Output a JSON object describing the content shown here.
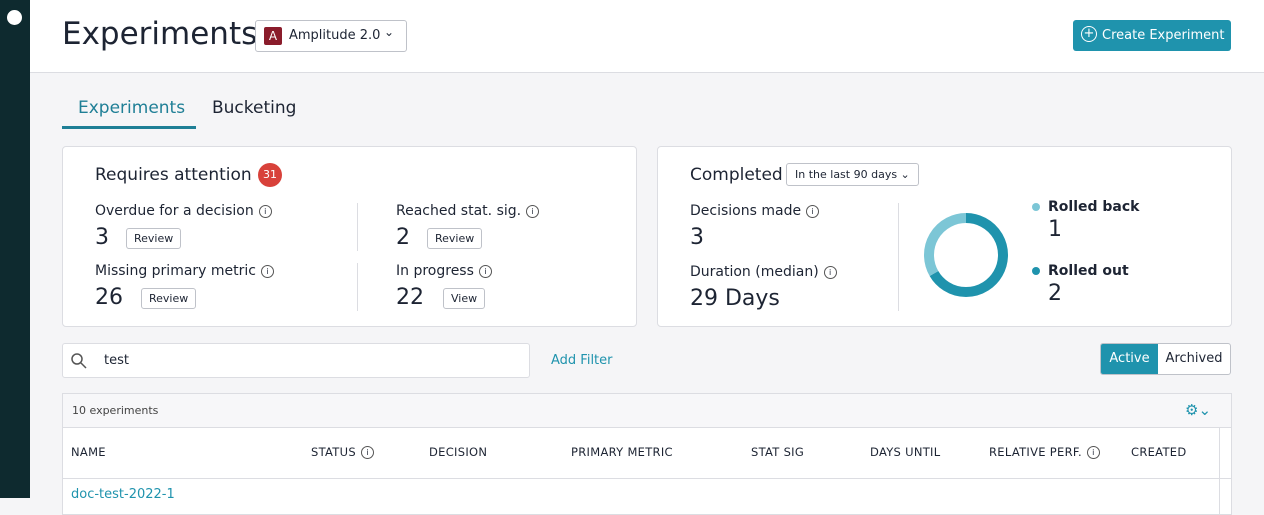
{
  "header": {
    "title": "Experiments",
    "project_badge": "A",
    "project": "Amplitude 2.0",
    "create_button": "Create Experiment"
  },
  "tabs": [
    "Experiments",
    "Bucketing"
  ],
  "requires_attention": {
    "title": "Requires attention",
    "count": 31,
    "items": [
      {
        "label": "Overdue for a decision",
        "value": 3,
        "action": "Review"
      },
      {
        "label": "Reached stat. sig.",
        "value": 2,
        "action": "Review"
      },
      {
        "label": "Missing primary metric",
        "value": 26,
        "action": "Review"
      },
      {
        "label": "In progress",
        "value": 22,
        "action": "View"
      }
    ]
  },
  "completed": {
    "title": "Completed",
    "range": "In the last 90 days",
    "decisions_label": "Decisions made",
    "decisions": 3,
    "duration_label": "Duration (median)",
    "duration": "29 Days",
    "outcomes": [
      {
        "name": "Rolled back",
        "value": 1,
        "color": "#7cc6d6"
      },
      {
        "name": "Rolled out",
        "value": 2,
        "color": "#1f93ad"
      }
    ]
  },
  "search": {
    "query": "test",
    "add_filter": "Add Filter"
  },
  "view_toggle": [
    "Active",
    "Archived"
  ],
  "table": {
    "count_label": "10 experiments",
    "columns": [
      "NAME",
      "STATUS",
      "DECISION",
      "PRIMARY METRIC",
      "STAT SIG",
      "DAYS UNTIL",
      "RELATIVE PERF.",
      "CREATED"
    ],
    "rows": [
      [
        "doc-test-2022-1"
      ]
    ]
  }
}
